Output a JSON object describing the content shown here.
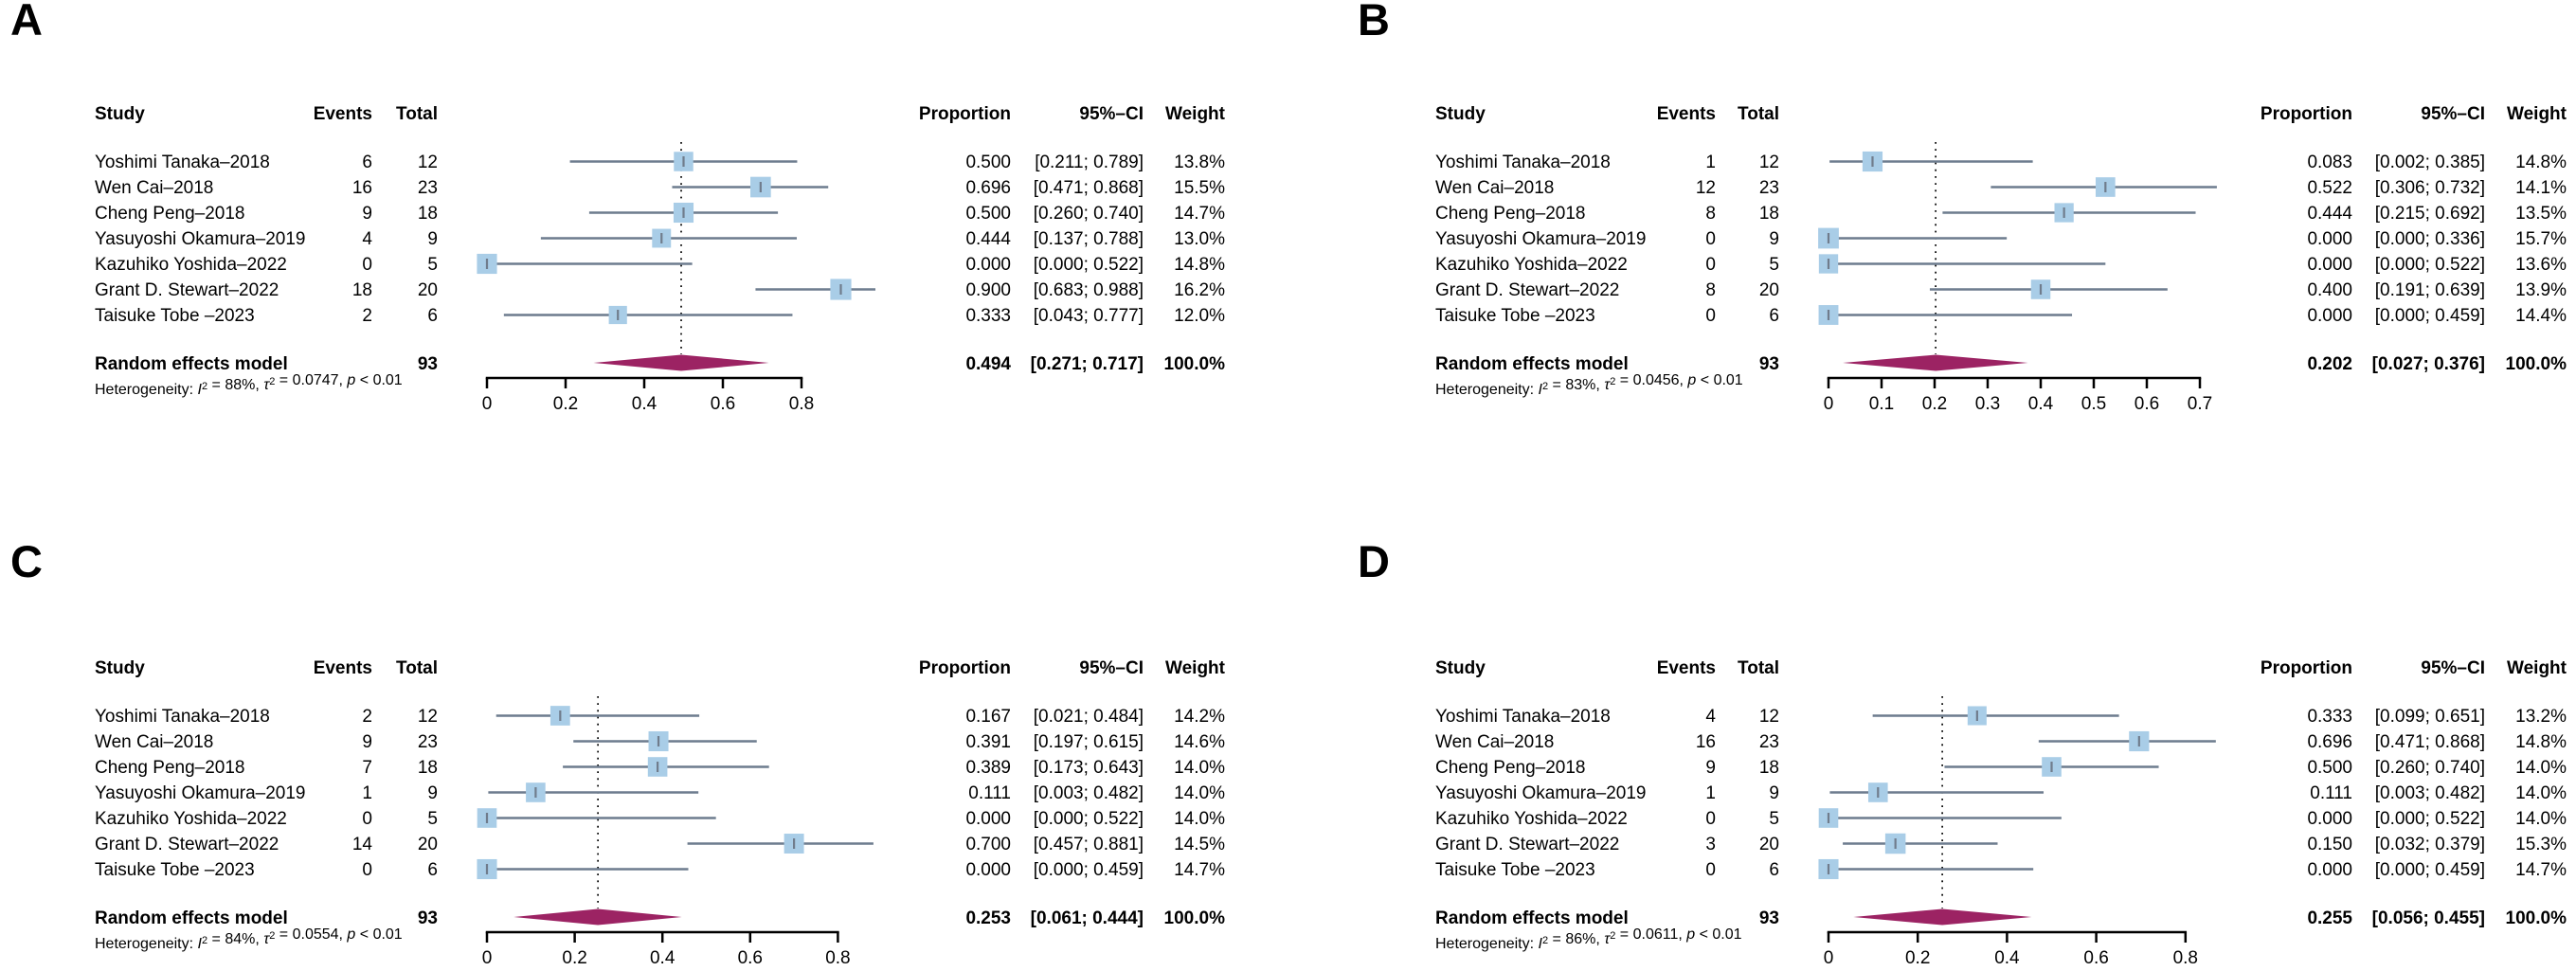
{
  "figure_type": "meta-analysis forest plots (proportions), 4 panels",
  "colors": {
    "background": "#ffffff",
    "square": "#a9cde7",
    "ci_line": "#6d7c8e",
    "marker": "#707c8c",
    "diamond": "#9c2363",
    "dotted_line": "#000000",
    "axis": "#000000",
    "text": "#000000"
  },
  "headers": {
    "study": "Study",
    "events": "Events",
    "total": "Total",
    "proportion": "Proportion",
    "ci": "95%–CI",
    "weight": "Weight"
  },
  "pooled_label": "Random effects model",
  "heterogeneity_prefix": "Heterogeneity: ",
  "chart_data": [
    {
      "type": "forest",
      "label": "A",
      "axis": {
        "ticks": [
          0,
          0.2,
          0.4,
          0.6,
          0.8
        ],
        "grid": false
      },
      "studies": [
        {
          "name": "Yoshimi Tanaka–2018",
          "events": 6,
          "total": 12,
          "proportion": "0.500",
          "lower": 0.211,
          "upper": 0.789,
          "ci": "[0.211; 0.789]",
          "weight": "13.8%",
          "weight_val": 13.8
        },
        {
          "name": "Wen Cai–2018",
          "events": 16,
          "total": 23,
          "proportion": "0.696",
          "lower": 0.471,
          "upper": 0.868,
          "ci": "[0.471; 0.868]",
          "weight": "15.5%",
          "weight_val": 15.5
        },
        {
          "name": "Cheng Peng–2018",
          "events": 9,
          "total": 18,
          "proportion": "0.500",
          "lower": 0.26,
          "upper": 0.74,
          "ci": "[0.260; 0.740]",
          "weight": "14.7%",
          "weight_val": 14.7
        },
        {
          "name": "Yasuyoshi Okamura–2019",
          "events": 4,
          "total": 9,
          "proportion": "0.444",
          "lower": 0.137,
          "upper": 0.788,
          "ci": "[0.137; 0.788]",
          "weight": "13.0%",
          "weight_val": 13.0
        },
        {
          "name": "Kazuhiko Yoshida–2022",
          "events": 0,
          "total": 5,
          "proportion": "0.000",
          "lower": 0.0,
          "upper": 0.522,
          "ci": "[0.000; 0.522]",
          "weight": "14.8%",
          "weight_val": 14.8
        },
        {
          "name": "Grant D. Stewart–2022",
          "events": 18,
          "total": 20,
          "proportion": "0.900",
          "lower": 0.683,
          "upper": 0.988,
          "ci": "[0.683; 0.988]",
          "weight": "16.2%",
          "weight_val": 16.2
        },
        {
          "name": "Taisuke Tobe –2023",
          "events": 2,
          "total": 6,
          "proportion": "0.333",
          "lower": 0.043,
          "upper": 0.777,
          "ci": "[0.043; 0.777]",
          "weight": "12.0%",
          "weight_val": 12.0
        }
      ],
      "pooled": {
        "total": 93,
        "proportion": "0.494",
        "lower": 0.271,
        "upper": 0.717,
        "ci": "[0.271; 0.717]",
        "weight": "100.0%"
      },
      "heterogeneity": {
        "i2": "88%",
        "tau2": "0.0747",
        "p": "0.01"
      }
    },
    {
      "type": "forest",
      "label": "B",
      "axis": {
        "ticks": [
          0,
          0.1,
          0.2,
          0.3,
          0.4,
          0.5,
          0.6,
          0.7
        ],
        "grid": false
      },
      "studies": [
        {
          "name": "Yoshimi Tanaka–2018",
          "events": 1,
          "total": 12,
          "proportion": "0.083",
          "lower": 0.002,
          "upper": 0.385,
          "ci": "[0.002; 0.385]",
          "weight": "14.8%",
          "weight_val": 14.8
        },
        {
          "name": "Wen Cai–2018",
          "events": 12,
          "total": 23,
          "proportion": "0.522",
          "lower": 0.306,
          "upper": 0.732,
          "ci": "[0.306; 0.732]",
          "weight": "14.1%",
          "weight_val": 14.1
        },
        {
          "name": "Cheng Peng–2018",
          "events": 8,
          "total": 18,
          "proportion": "0.444",
          "lower": 0.215,
          "upper": 0.692,
          "ci": "[0.215; 0.692]",
          "weight": "13.5%",
          "weight_val": 13.5
        },
        {
          "name": "Yasuyoshi Okamura–2019",
          "events": 0,
          "total": 9,
          "proportion": "0.000",
          "lower": 0.0,
          "upper": 0.336,
          "ci": "[0.000; 0.336]",
          "weight": "15.7%",
          "weight_val": 15.7
        },
        {
          "name": "Kazuhiko Yoshida–2022",
          "events": 0,
          "total": 5,
          "proportion": "0.000",
          "lower": 0.0,
          "upper": 0.522,
          "ci": "[0.000; 0.522]",
          "weight": "13.6%",
          "weight_val": 13.6
        },
        {
          "name": "Grant D. Stewart–2022",
          "events": 8,
          "total": 20,
          "proportion": "0.400",
          "lower": 0.191,
          "upper": 0.639,
          "ci": "[0.191; 0.639]",
          "weight": "13.9%",
          "weight_val": 13.9
        },
        {
          "name": "Taisuke Tobe –2023",
          "events": 0,
          "total": 6,
          "proportion": "0.000",
          "lower": 0.0,
          "upper": 0.459,
          "ci": "[0.000; 0.459]",
          "weight": "14.4%",
          "weight_val": 14.4
        }
      ],
      "pooled": {
        "total": 93,
        "proportion": "0.202",
        "lower": 0.027,
        "upper": 0.376,
        "ci": "[0.027; 0.376]",
        "weight": "100.0%"
      },
      "heterogeneity": {
        "i2": "83%",
        "tau2": "0.0456",
        "p": "0.01"
      }
    },
    {
      "type": "forest",
      "label": "C",
      "axis": {
        "ticks": [
          0,
          0.2,
          0.4,
          0.6,
          0.8
        ],
        "grid": false
      },
      "studies": [
        {
          "name": "Yoshimi Tanaka–2018",
          "events": 2,
          "total": 12,
          "proportion": "0.167",
          "lower": 0.021,
          "upper": 0.484,
          "ci": "[0.021; 0.484]",
          "weight": "14.2%",
          "weight_val": 14.2
        },
        {
          "name": "Wen Cai–2018",
          "events": 9,
          "total": 23,
          "proportion": "0.391",
          "lower": 0.197,
          "upper": 0.615,
          "ci": "[0.197; 0.615]",
          "weight": "14.6%",
          "weight_val": 14.6
        },
        {
          "name": "Cheng Peng–2018",
          "events": 7,
          "total": 18,
          "proportion": "0.389",
          "lower": 0.173,
          "upper": 0.643,
          "ci": "[0.173; 0.643]",
          "weight": "14.0%",
          "weight_val": 14.0
        },
        {
          "name": "Yasuyoshi Okamura–2019",
          "events": 1,
          "total": 9,
          "proportion": "0.111",
          "lower": 0.003,
          "upper": 0.482,
          "ci": "[0.003; 0.482]",
          "weight": "14.0%",
          "weight_val": 14.0
        },
        {
          "name": "Kazuhiko Yoshida–2022",
          "events": 0,
          "total": 5,
          "proportion": "0.000",
          "lower": 0.0,
          "upper": 0.522,
          "ci": "[0.000; 0.522]",
          "weight": "14.0%",
          "weight_val": 14.0
        },
        {
          "name": "Grant D. Stewart–2022",
          "events": 14,
          "total": 20,
          "proportion": "0.700",
          "lower": 0.457,
          "upper": 0.881,
          "ci": "[0.457; 0.881]",
          "weight": "14.5%",
          "weight_val": 14.5
        },
        {
          "name": "Taisuke Tobe –2023",
          "events": 0,
          "total": 6,
          "proportion": "0.000",
          "lower": 0.0,
          "upper": 0.459,
          "ci": "[0.000; 0.459]",
          "weight": "14.7%",
          "weight_val": 14.7
        }
      ],
      "pooled": {
        "total": 93,
        "proportion": "0.253",
        "lower": 0.061,
        "upper": 0.444,
        "ci": "[0.061; 0.444]",
        "weight": "100.0%"
      },
      "heterogeneity": {
        "i2": "84%",
        "tau2": "0.0554",
        "p": "0.01"
      }
    },
    {
      "type": "forest",
      "label": "D",
      "axis": {
        "ticks": [
          0,
          0.2,
          0.4,
          0.6,
          0.8
        ],
        "grid": false
      },
      "studies": [
        {
          "name": "Yoshimi Tanaka–2018",
          "events": 4,
          "total": 12,
          "proportion": "0.333",
          "lower": 0.099,
          "upper": 0.651,
          "ci": "[0.099; 0.651]",
          "weight": "13.2%",
          "weight_val": 13.2
        },
        {
          "name": "Wen Cai–2018",
          "events": 16,
          "total": 23,
          "proportion": "0.696",
          "lower": 0.471,
          "upper": 0.868,
          "ci": "[0.471; 0.868]",
          "weight": "14.8%",
          "weight_val": 14.8
        },
        {
          "name": "Cheng Peng–2018",
          "events": 9,
          "total": 18,
          "proportion": "0.500",
          "lower": 0.26,
          "upper": 0.74,
          "ci": "[0.260; 0.740]",
          "weight": "14.0%",
          "weight_val": 14.0
        },
        {
          "name": "Yasuyoshi Okamura–2019",
          "events": 1,
          "total": 9,
          "proportion": "0.111",
          "lower": 0.003,
          "upper": 0.482,
          "ci": "[0.003; 0.482]",
          "weight": "14.0%",
          "weight_val": 14.0
        },
        {
          "name": "Kazuhiko Yoshida–2022",
          "events": 0,
          "total": 5,
          "proportion": "0.000",
          "lower": 0.0,
          "upper": 0.522,
          "ci": "[0.000; 0.522]",
          "weight": "14.0%",
          "weight_val": 14.0
        },
        {
          "name": "Grant D. Stewart–2022",
          "events": 3,
          "total": 20,
          "proportion": "0.150",
          "lower": 0.032,
          "upper": 0.379,
          "ci": "[0.032; 0.379]",
          "weight": "15.3%",
          "weight_val": 15.3
        },
        {
          "name": "Taisuke Tobe –2023",
          "events": 0,
          "total": 6,
          "proportion": "0.000",
          "lower": 0.0,
          "upper": 0.459,
          "ci": "[0.000; 0.459]",
          "weight": "14.7%",
          "weight_val": 14.7
        }
      ],
      "pooled": {
        "total": 93,
        "proportion": "0.255",
        "lower": 0.056,
        "upper": 0.455,
        "ci": "[0.056; 0.455]",
        "weight": "100.0%"
      },
      "heterogeneity": {
        "i2": "86%",
        "tau2": "0.0611",
        "p": "0.01"
      }
    }
  ]
}
